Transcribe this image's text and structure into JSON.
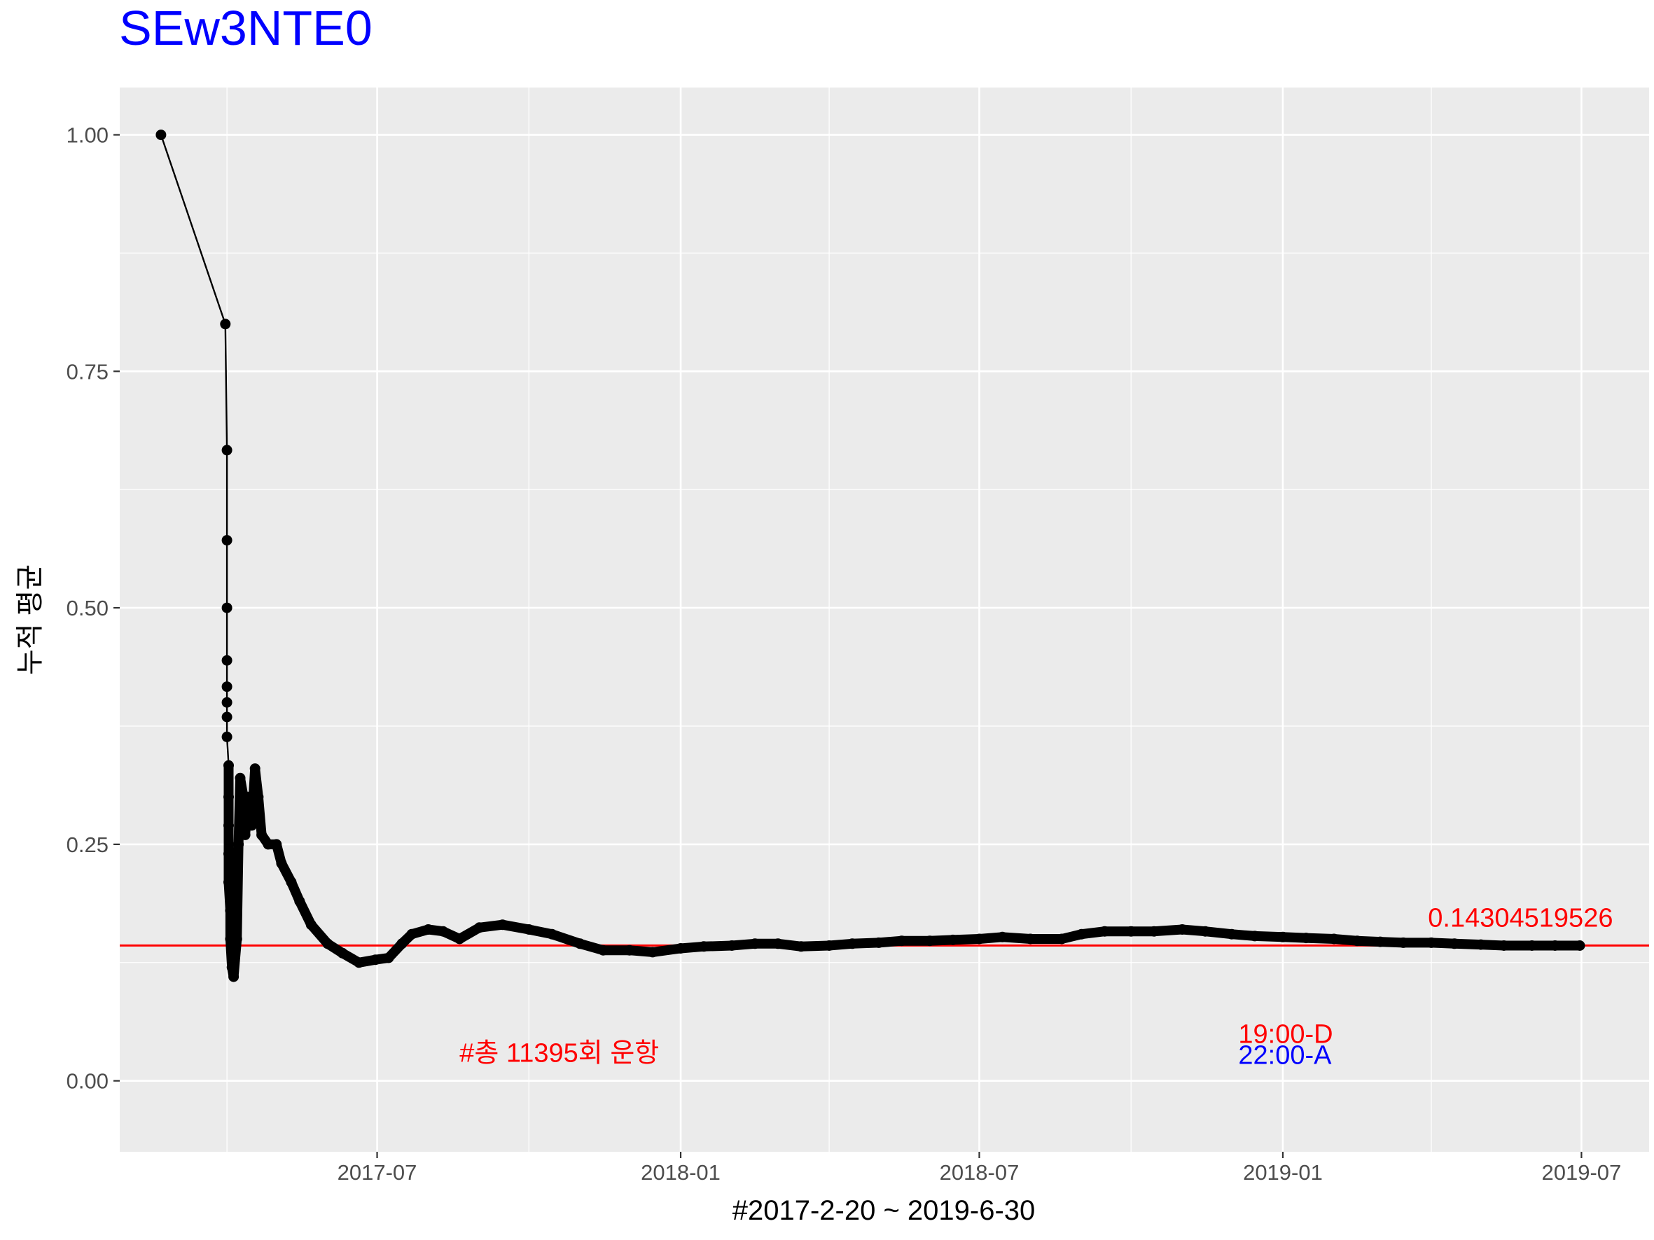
{
  "chart_data": {
    "type": "line",
    "title": "SEw3NTE0",
    "title_color": "#0000FF",
    "xlabel": "#2017-2-20 ~ 2019-6-30",
    "ylabel": "누적 평균",
    "x_range": [
      "2017-01-26",
      "2019-08-11"
    ],
    "ylim": [
      -0.075,
      1.05
    ],
    "y_ticks": [
      {
        "value": 0.0,
        "label": "0.00"
      },
      {
        "value": 0.25,
        "label": "0.25"
      },
      {
        "value": 0.5,
        "label": "0.50"
      },
      {
        "value": 0.75,
        "label": "0.75"
      },
      {
        "value": 1.0,
        "label": "1.00"
      }
    ],
    "x_ticks": [
      {
        "date": "2017-07-01",
        "label": "2017-07"
      },
      {
        "date": "2018-01-01",
        "label": "2018-01"
      },
      {
        "date": "2018-07-01",
        "label": "2018-07"
      },
      {
        "date": "2019-01-01",
        "label": "2019-01"
      },
      {
        "date": "2019-07-01",
        "label": "2019-07"
      }
    ],
    "x_minor_ticks": [
      "2017-04-01",
      "2017-10-01",
      "2018-04-01",
      "2018-10-01",
      "2019-04-01"
    ],
    "grid": true,
    "panel_color": "#EBEBEB",
    "series": [
      {
        "color": "#000000",
        "points": [
          [
            "2017-02-20",
            1.0
          ],
          [
            "2017-03-31",
            0.8
          ],
          [
            "2017-04-01",
            0.6667
          ],
          [
            "2017-04-01",
            0.5714
          ],
          [
            "2017-04-01",
            0.5
          ],
          [
            "2017-04-01",
            0.4444
          ],
          [
            "2017-04-01",
            0.4167
          ],
          [
            "2017-04-01",
            0.4
          ],
          [
            "2017-04-01",
            0.3846
          ],
          [
            "2017-04-01",
            0.3636
          ],
          [
            "2017-04-02",
            0.3333
          ],
          [
            "2017-04-02",
            0.3
          ],
          [
            "2017-04-02",
            0.27
          ],
          [
            "2017-04-02",
            0.24
          ],
          [
            "2017-04-02",
            0.21
          ],
          [
            "2017-04-03",
            0.18
          ],
          [
            "2017-04-03",
            0.15
          ],
          [
            "2017-04-04",
            0.12
          ],
          [
            "2017-04-05",
            0.11
          ],
          [
            "2017-04-07",
            0.15
          ],
          [
            "2017-04-08",
            0.25
          ],
          [
            "2017-04-09",
            0.32
          ],
          [
            "2017-04-11",
            0.3
          ],
          [
            "2017-04-12",
            0.26
          ],
          [
            "2017-04-14",
            0.3
          ],
          [
            "2017-04-16",
            0.27
          ],
          [
            "2017-04-18",
            0.33
          ],
          [
            "2017-04-20",
            0.3
          ],
          [
            "2017-04-22",
            0.26
          ],
          [
            "2017-04-26",
            0.25
          ],
          [
            "2017-05-01",
            0.25
          ],
          [
            "2017-05-04",
            0.23
          ],
          [
            "2017-05-10",
            0.21
          ],
          [
            "2017-05-15",
            0.19
          ],
          [
            "2017-05-22",
            0.165
          ],
          [
            "2017-06-01",
            0.145
          ],
          [
            "2017-06-10",
            0.135
          ],
          [
            "2017-06-20",
            0.125
          ],
          [
            "2017-06-30",
            0.128
          ],
          [
            "2017-07-08",
            0.13
          ],
          [
            "2017-07-16",
            0.145
          ],
          [
            "2017-07-22",
            0.155
          ],
          [
            "2017-08-01",
            0.16
          ],
          [
            "2017-08-10",
            0.158
          ],
          [
            "2017-08-20",
            0.15
          ],
          [
            "2017-09-01",
            0.162
          ],
          [
            "2017-09-15",
            0.165
          ],
          [
            "2017-10-01",
            0.16
          ],
          [
            "2017-10-15",
            0.155
          ],
          [
            "2017-11-01",
            0.145
          ],
          [
            "2017-11-15",
            0.138
          ],
          [
            "2017-12-01",
            0.138
          ],
          [
            "2017-12-15",
            0.136
          ],
          [
            "2018-01-01",
            0.14
          ],
          [
            "2018-01-15",
            0.142
          ],
          [
            "2018-02-01",
            0.143
          ],
          [
            "2018-02-15",
            0.145
          ],
          [
            "2018-03-01",
            0.145
          ],
          [
            "2018-03-15",
            0.142
          ],
          [
            "2018-04-01",
            0.143
          ],
          [
            "2018-04-15",
            0.145
          ],
          [
            "2018-05-01",
            0.146
          ],
          [
            "2018-05-15",
            0.148
          ],
          [
            "2018-06-01",
            0.148
          ],
          [
            "2018-06-15",
            0.149
          ],
          [
            "2018-07-01",
            0.15
          ],
          [
            "2018-07-15",
            0.152
          ],
          [
            "2018-08-01",
            0.15
          ],
          [
            "2018-08-20",
            0.15
          ],
          [
            "2018-09-01",
            0.155
          ],
          [
            "2018-09-15",
            0.158
          ],
          [
            "2018-10-01",
            0.158
          ],
          [
            "2018-10-15",
            0.158
          ],
          [
            "2018-11-01",
            0.16
          ],
          [
            "2018-11-15",
            0.158
          ],
          [
            "2018-12-01",
            0.155
          ],
          [
            "2018-12-15",
            0.153
          ],
          [
            "2019-01-01",
            0.152
          ],
          [
            "2019-01-15",
            0.151
          ],
          [
            "2019-02-01",
            0.15
          ],
          [
            "2019-02-15",
            0.148
          ],
          [
            "2019-03-01",
            0.147
          ],
          [
            "2019-03-15",
            0.146
          ],
          [
            "2019-04-01",
            0.146
          ],
          [
            "2019-04-15",
            0.145
          ],
          [
            "2019-05-01",
            0.144
          ],
          [
            "2019-05-15",
            0.143
          ],
          [
            "2019-06-01",
            0.143
          ],
          [
            "2019-06-15",
            0.143
          ],
          [
            "2019-06-30",
            0.143
          ]
        ]
      }
    ],
    "hline": {
      "value": 0.14304519526,
      "color": "#FF0000"
    },
    "annotations": [
      {
        "text": "0.14304519526",
        "color": "#FF0000",
        "date": "2019-03-30",
        "y": 0.163
      },
      {
        "text": "#총 11395회 운항",
        "color": "#FF0000",
        "date": "2017-08-20",
        "y": 0.02
      },
      {
        "text": "19:00-D",
        "color": "#FF0000",
        "date": "2018-12-05",
        "y": 0.04
      },
      {
        "text": "22:00-A",
        "color": "#0000FF",
        "date": "2018-12-05",
        "y": 0.018
      }
    ]
  }
}
